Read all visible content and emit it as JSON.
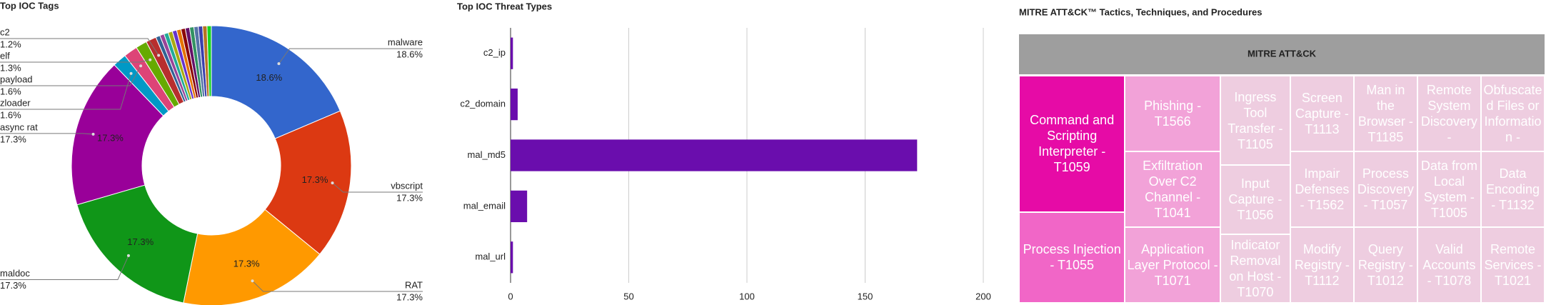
{
  "chart_data": [
    {
      "type": "pie",
      "title": "Top IOC Tags",
      "categories": [
        "malware",
        "vbscript",
        "RAT",
        "maldoc",
        "async rat",
        "zloader",
        "payload",
        "elf",
        "c2",
        null,
        null,
        null,
        null,
        null,
        null,
        null,
        null,
        null,
        null,
        null,
        null,
        null
      ],
      "values": [
        18.6,
        17.3,
        17.3,
        17.3,
        17.3,
        1.6,
        1.6,
        1.3,
        1.2,
        0.5,
        0.5,
        0.5,
        0.5,
        0.5,
        0.5,
        0.5,
        0.5,
        0.5,
        0.5,
        0.5,
        0.5,
        0.5
      ],
      "value_labels": [
        "18.6%",
        "17.3%",
        "17.3%",
        "17.3%",
        "17.3%",
        "1.6%",
        "1.6%",
        "1.3%",
        "1.2%",
        null,
        null,
        null,
        null,
        null,
        null,
        null,
        null,
        null,
        null,
        null,
        null,
        null
      ],
      "colors": [
        "#3366cc",
        "#dc3912",
        "#ff9900",
        "#109618",
        "#990099",
        "#0099c6",
        "#dd4477",
        "#66aa00",
        "#b82e2e",
        "#316395",
        "#994499",
        "#22aa99",
        "#aaaa11",
        "#6633cc",
        "#e67300",
        "#8b0707",
        "#651067",
        "#329262",
        "#5574a6",
        "#3b3eac",
        "#b77322",
        "#16d620"
      ]
    },
    {
      "type": "hbar",
      "title": "Top IOC Threat Types",
      "categories": [
        "c2_ip",
        "c2_domain",
        "mal_md5",
        "mal_email",
        "mal_url"
      ],
      "values": [
        1,
        3,
        172,
        7,
        1
      ],
      "color": "#6a0dad",
      "xlim": [
        0,
        200
      ],
      "xticks": [
        0,
        50,
        100,
        150,
        200
      ],
      "grid": true
    },
    {
      "type": "treemap",
      "title": "MITRE ATT&CK™ Tactics, Techniques, and Procedures",
      "header": "MITRE ATT&CK",
      "labels": [
        "Command and Scripting Interpreter - T1059",
        "Process Injection - T1055",
        "Phishing - T1566",
        "Exfiltration Over C2 Channel - T1041",
        "Application Layer Protocol - T1071",
        "Ingress Tool Transfer - T1105",
        "Input Capture - T1056",
        "Indicator Removal on Host - T1070",
        "Screen Capture - T1113",
        "Impair Defenses - T1562",
        "Modify Registry - T1112",
        "Man in the Browser - T1185",
        "Remote System Discovery -",
        "Obfuscated Files or Information -",
        "Process Discovery - T1057",
        "Query Registry - T1012",
        "Data from Local System - T1005",
        "Data Encoding - T1132",
        "Valid Accounts - T1078",
        "Remote Services - T1021"
      ],
      "values": [
        3,
        2,
        1.5,
        1.5,
        1.5,
        1.3,
        1,
        1,
        1,
        1,
        1,
        1,
        1,
        1,
        1,
        1,
        1,
        1,
        1,
        1
      ],
      "colors": [
        "#e60ba6",
        "#f166c7",
        "#f2a2d8",
        "#f2a2d8",
        "#f2a2d8",
        "#eecde0",
        "#eecde0",
        "#eecde0",
        "#eecde0",
        "#eecde0",
        "#eecde0",
        "#eecde0",
        "#eecde0",
        "#eecde0",
        "#eecde0",
        "#eecde0",
        "#eecde0",
        "#eecde0",
        "#eecde0",
        "#eecde0"
      ]
    }
  ]
}
